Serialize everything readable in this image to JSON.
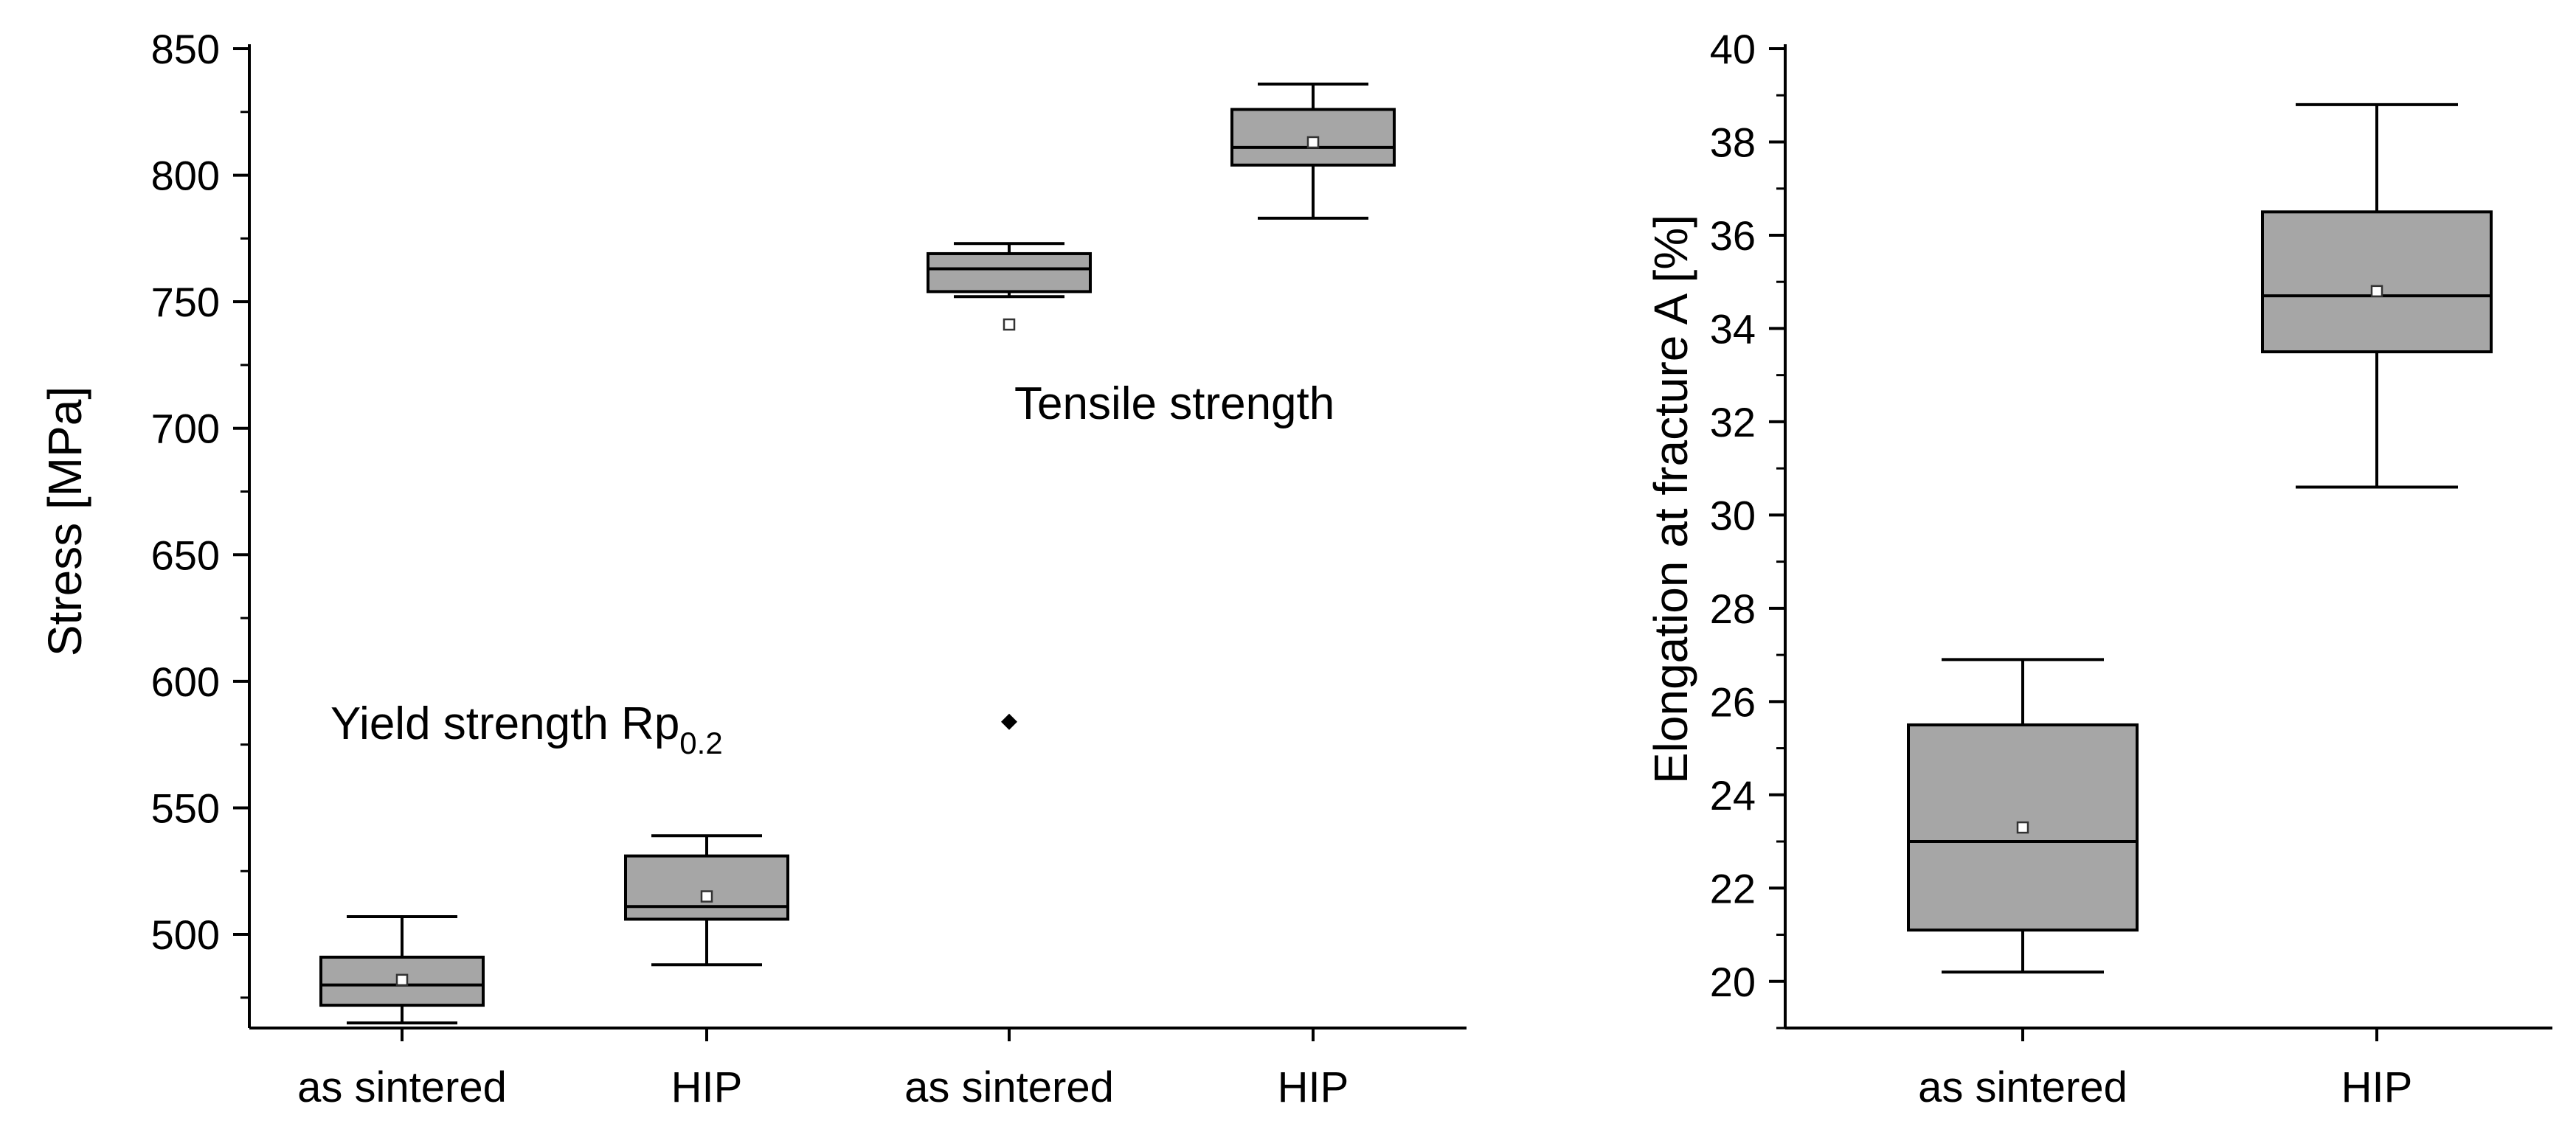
{
  "chart_data": [
    {
      "type": "box",
      "title": "",
      "ylabel": "Stress [MPa]",
      "xlabel": "",
      "ylim": [
        463,
        850
      ],
      "yticks": [
        500,
        550,
        600,
        650,
        700,
        750,
        800,
        850
      ],
      "categories": [
        "as sintered",
        "HIP",
        "as sintered",
        "HIP"
      ],
      "boxes": [
        {
          "label": "as sintered",
          "whisker_low": 465,
          "q1": 472,
          "median": 480,
          "q3": 491,
          "whisker_high": 507,
          "mean": 482
        },
        {
          "label": "HIP",
          "whisker_low": 488,
          "q1": 506,
          "median": 511,
          "q3": 531,
          "whisker_high": 539,
          "mean": 515
        },
        {
          "label": "as sintered",
          "whisker_low": 752,
          "q1": 754,
          "median": 763,
          "q3": 769,
          "whisker_high": 773,
          "mean": 741,
          "outliers": [
            584
          ]
        },
        {
          "label": "HIP",
          "whisker_low": 783,
          "q1": 804,
          "median": 811,
          "q3": 826,
          "whisker_high": 836,
          "mean": 813
        }
      ],
      "annotations": {
        "yield": {
          "text": "Yield strength Rp",
          "subscript": "0.2"
        },
        "tensile": {
          "text": "Tensile strength"
        }
      }
    },
    {
      "type": "box",
      "title": "",
      "ylabel": "Elongation at fracture A [%]",
      "xlabel": "",
      "ylim": [
        19,
        40
      ],
      "yticks": [
        20,
        22,
        24,
        26,
        28,
        30,
        32,
        34,
        36,
        38,
        40
      ],
      "categories": [
        "as sintered",
        "HIP"
      ],
      "boxes": [
        {
          "label": "as sintered",
          "whisker_low": 20.2,
          "q1": 21.1,
          "median": 23.0,
          "q3": 25.5,
          "whisker_high": 26.9,
          "mean": 23.3
        },
        {
          "label": "HIP",
          "whisker_low": 30.6,
          "q1": 33.5,
          "median": 34.7,
          "q3": 36.5,
          "whisker_high": 38.8,
          "mean": 34.8
        }
      ]
    }
  ],
  "colors": {
    "box_fill": "#a6a6a6",
    "line": "#000000",
    "mean_marker_fill": "#ffffff"
  }
}
